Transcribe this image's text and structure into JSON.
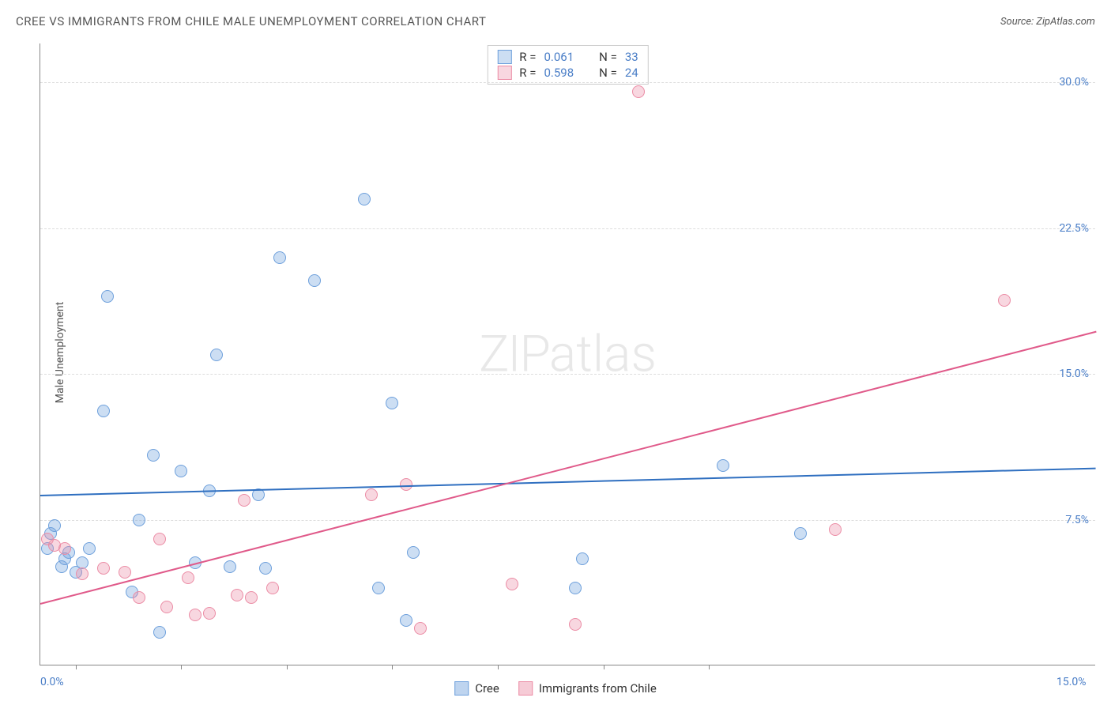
{
  "title": "CREE VS IMMIGRANTS FROM CHILE MALE UNEMPLOYMENT CORRELATION CHART",
  "source_label": "Source: ZipAtlas.com",
  "ylabel": "Male Unemployment",
  "watermark_zip": "ZIP",
  "watermark_atlas": "atlas",
  "chart": {
    "type": "scatter-with-trend",
    "background_color": "#ffffff",
    "grid_color": "#dddddd",
    "axis_color": "#888888",
    "label_color": "#4a7ec7",
    "xlim": [
      0,
      15
    ],
    "ylim": [
      0,
      32
    ],
    "xtick_labels": [
      {
        "v": 0,
        "text": "0.0%"
      },
      {
        "v": 15,
        "text": "15.0%"
      }
    ],
    "xtick_minor": [
      0.5,
      2.0,
      3.5,
      5.0,
      6.5,
      8.0,
      9.5
    ],
    "ytick_labels": [
      {
        "v": 7.5,
        "text": "7.5%"
      },
      {
        "v": 15.0,
        "text": "15.0%"
      },
      {
        "v": 22.5,
        "text": "22.5%"
      },
      {
        "v": 30.0,
        "text": "30.0%"
      }
    ],
    "series": [
      {
        "name": "Cree",
        "fill": "rgba(110,160,220,0.35)",
        "stroke": "#6ea0dc",
        "r_value": "0.061",
        "n_value": "33",
        "trend": {
          "x1": 0,
          "y1": 8.8,
          "x2": 15,
          "y2": 10.2,
          "color": "#2f6fc0",
          "width": 2
        },
        "points": [
          {
            "x": 0.1,
            "y": 6.0
          },
          {
            "x": 0.15,
            "y": 6.8
          },
          {
            "x": 0.2,
            "y": 7.2
          },
          {
            "x": 0.3,
            "y": 5.1
          },
          {
            "x": 0.35,
            "y": 5.5
          },
          {
            "x": 0.4,
            "y": 5.8
          },
          {
            "x": 0.5,
            "y": 4.8
          },
          {
            "x": 0.6,
            "y": 5.3
          },
          {
            "x": 0.7,
            "y": 6.0
          },
          {
            "x": 0.9,
            "y": 13.1
          },
          {
            "x": 0.95,
            "y": 19.0
          },
          {
            "x": 1.3,
            "y": 3.8
          },
          {
            "x": 1.4,
            "y": 7.5
          },
          {
            "x": 1.6,
            "y": 10.8
          },
          {
            "x": 1.7,
            "y": 1.7
          },
          {
            "x": 2.0,
            "y": 10.0
          },
          {
            "x": 2.2,
            "y": 5.3
          },
          {
            "x": 2.4,
            "y": 9.0
          },
          {
            "x": 2.5,
            "y": 16.0
          },
          {
            "x": 2.7,
            "y": 5.1
          },
          {
            "x": 3.1,
            "y": 8.8
          },
          {
            "x": 3.2,
            "y": 5.0
          },
          {
            "x": 3.4,
            "y": 21.0
          },
          {
            "x": 3.9,
            "y": 19.8
          },
          {
            "x": 4.6,
            "y": 24.0
          },
          {
            "x": 4.8,
            "y": 4.0
          },
          {
            "x": 5.0,
            "y": 13.5
          },
          {
            "x": 5.2,
            "y": 2.3
          },
          {
            "x": 5.3,
            "y": 5.8
          },
          {
            "x": 7.6,
            "y": 4.0
          },
          {
            "x": 7.7,
            "y": 5.5
          },
          {
            "x": 9.7,
            "y": 10.3
          },
          {
            "x": 10.8,
            "y": 6.8
          }
        ]
      },
      {
        "name": "Immigrants from Chile",
        "fill": "rgba(235,140,165,0.35)",
        "stroke": "#eb8ca5",
        "r_value": "0.598",
        "n_value": "24",
        "trend": {
          "x1": 0,
          "y1": 3.2,
          "x2": 15,
          "y2": 17.2,
          "color": "#e05a8a",
          "width": 2
        },
        "points": [
          {
            "x": 0.1,
            "y": 6.5
          },
          {
            "x": 0.2,
            "y": 6.2
          },
          {
            "x": 0.35,
            "y": 6.0
          },
          {
            "x": 0.6,
            "y": 4.7
          },
          {
            "x": 0.9,
            "y": 5.0
          },
          {
            "x": 1.2,
            "y": 4.8
          },
          {
            "x": 1.4,
            "y": 3.5
          },
          {
            "x": 1.7,
            "y": 6.5
          },
          {
            "x": 1.8,
            "y": 3.0
          },
          {
            "x": 2.1,
            "y": 4.5
          },
          {
            "x": 2.2,
            "y": 2.6
          },
          {
            "x": 2.4,
            "y": 2.7
          },
          {
            "x": 2.8,
            "y": 3.6
          },
          {
            "x": 2.9,
            "y": 8.5
          },
          {
            "x": 3.0,
            "y": 3.5
          },
          {
            "x": 3.3,
            "y": 4.0
          },
          {
            "x": 4.7,
            "y": 8.8
          },
          {
            "x": 5.2,
            "y": 9.3
          },
          {
            "x": 5.4,
            "y": 1.9
          },
          {
            "x": 6.7,
            "y": 4.2
          },
          {
            "x": 7.6,
            "y": 2.1
          },
          {
            "x": 8.5,
            "y": 29.5
          },
          {
            "x": 11.3,
            "y": 7.0
          },
          {
            "x": 13.7,
            "y": 18.8
          }
        ]
      }
    ],
    "bottom_legend": [
      {
        "label": "Cree",
        "fill": "rgba(110,160,220,0.45)",
        "stroke": "#6ea0dc"
      },
      {
        "label": "Immigrants from Chile",
        "fill": "rgba(235,140,165,0.45)",
        "stroke": "#eb8ca5"
      }
    ]
  }
}
